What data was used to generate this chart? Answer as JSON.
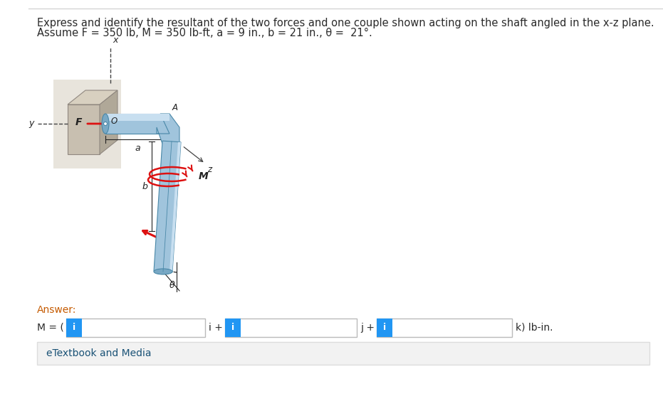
{
  "title_line1": "Express and identify the resultant of the two forces and one couple shown acting on the shaft angled in the x-z plane.",
  "title_line2": "Assume F = 350 lb, M = 350 lb-ft, a = 9 in., b = 21 in., θ =  21°.",
  "answer_label": "Answer:",
  "M_label": "M = (",
  "i_plus": "i +",
  "j_plus": "j +",
  "k_unit": "k) lb-in.",
  "bg_color": "#ffffff",
  "text_color": "#2a2a2a",
  "orange_text": "#c55a00",
  "blue_color": "#2196F3",
  "input_border": "#bbbbbb",
  "etextbook_bg": "#f2f2f2",
  "etextbook_text": "eTextbook and Media",
  "etextbook_color": "#1a5276",
  "title_fontsize": 10.5,
  "shaft_light": "#c8dff0",
  "shaft_mid": "#a0c4dc",
  "shaft_dark": "#78a8c4",
  "shaft_edge": "#4a88a8",
  "wall_front": "#c8bfb0",
  "wall_top": "#d8d0c0",
  "wall_right": "#b0a898",
  "wall_edge": "#908880",
  "arrow_red": "#dd1111",
  "axis_line": "#444444",
  "label_color": "#222222"
}
